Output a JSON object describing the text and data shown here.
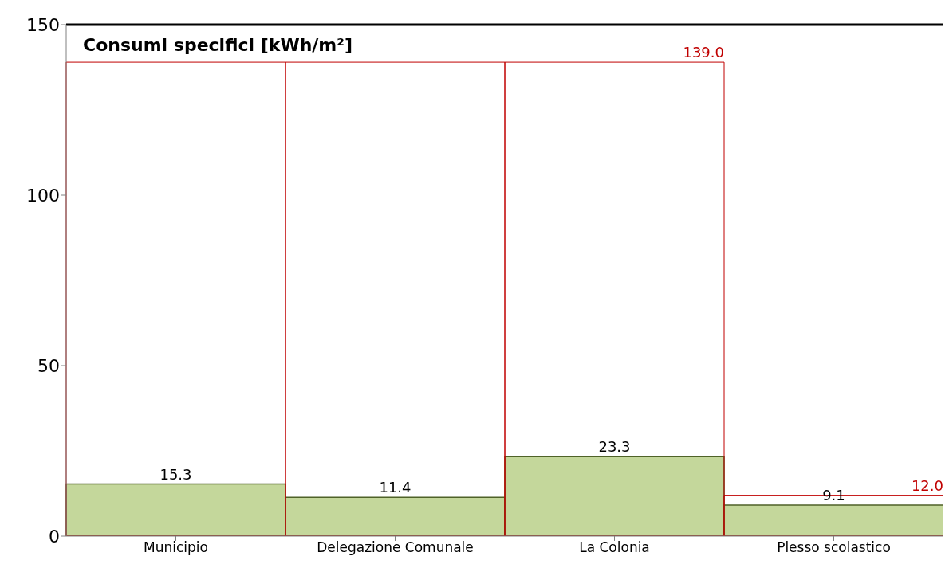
{
  "chart_data": {
    "type": "bar",
    "title": "Consumi specifici [kWh/m²]",
    "categories": [
      "Municipio",
      "Delegazione Comunale",
      "La Colonia",
      "Plesso scolastico"
    ],
    "series": [
      {
        "color": "#c4d79b",
        "values": [
          15.3,
          11.4,
          23.3,
          9.1
        ],
        "value_labels": [
          "15.3",
          "11.4",
          "23.3",
          "9.1"
        ]
      },
      {
        "color": "#c00000",
        "values": [
          139,
          139,
          139,
          12
        ],
        "value_labels": [
          null,
          null,
          "139.0",
          "12.0"
        ]
      }
    ],
    "ylim": [
      0,
      150
    ],
    "yticks": [
      0,
      50,
      100,
      150
    ],
    "grid": false,
    "legend": false
  }
}
